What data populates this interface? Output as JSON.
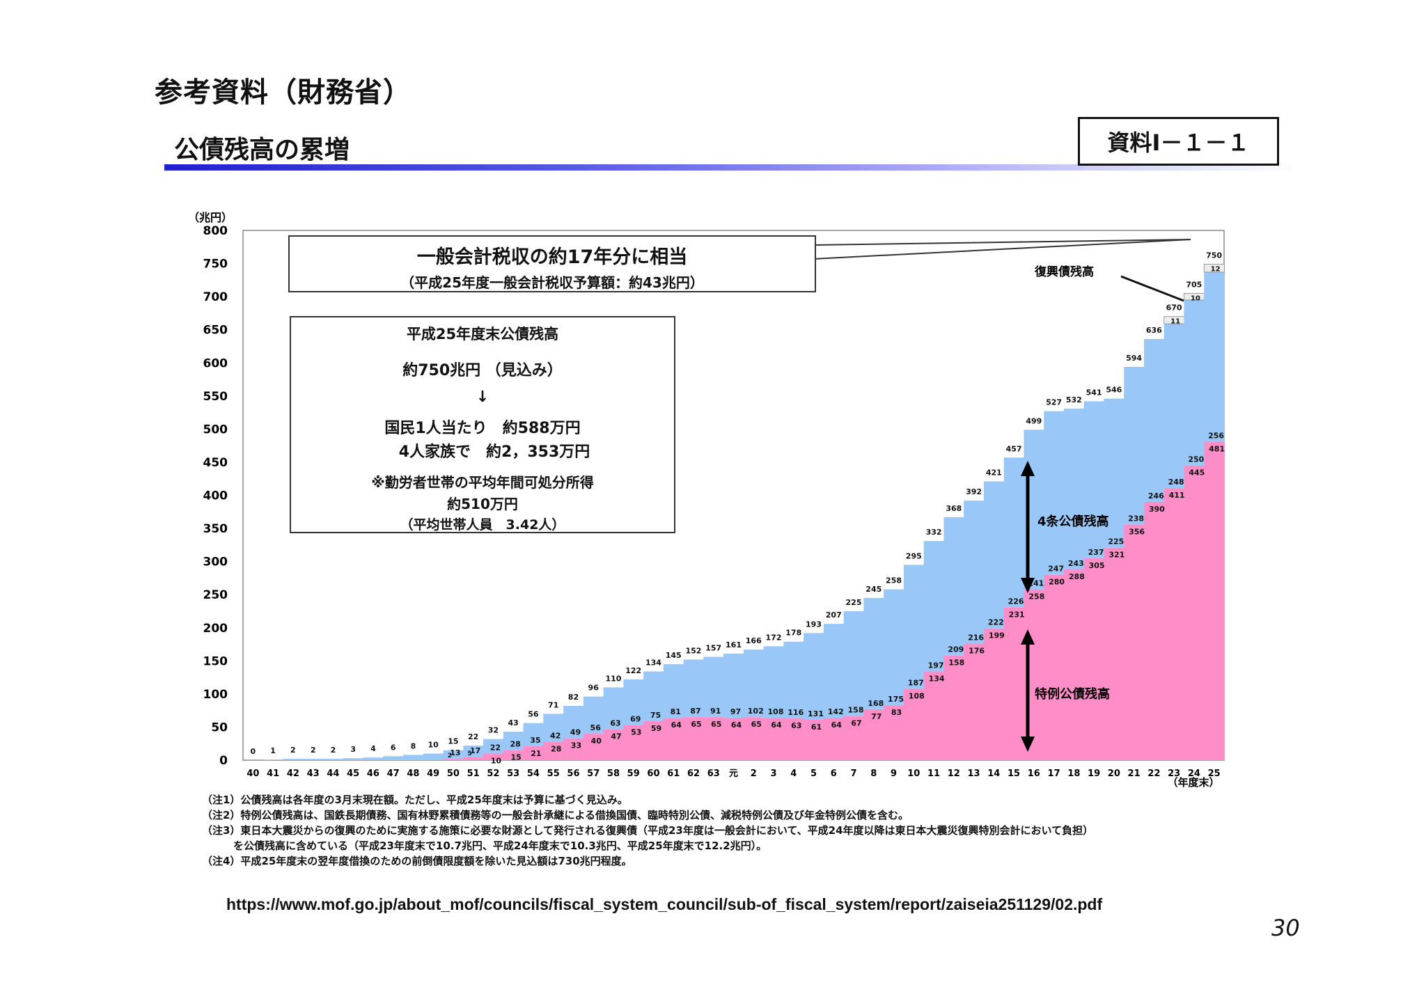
{
  "header": {
    "title": "参考資料（財務省）"
  },
  "slide": {
    "title": "公債残高の累増",
    "doc_ref": "資料Ⅰ－１－１"
  },
  "callouts": {
    "top_line1": "一般会計税収の約17年分に相当",
    "top_line2": "（平成25年度一般会計税収予算額：約43兆円）",
    "mid_line1": "平成25年度末公債残高",
    "mid_line2": "約750兆円 （見込み）",
    "mid_arrow": "↓",
    "mid_line3": "国民1人当たり　約588万円",
    "mid_line4": "4人家族で　約2，353万円",
    "mid_line5": "※勤労者世帯の平均年間可処分所得",
    "mid_line6": "約510万円",
    "mid_line7": "（平均世帯人員　3.42人）"
  },
  "chart_labels": {
    "fukko_label": "復興債残高",
    "kenchiku_label": "4条公債残高",
    "tokurei_label": "特例公債残高"
  },
  "notes": [
    "（注1）公債残高は各年度の3月末現在額。ただし、平成25年度末は予算に基づく見込み。",
    "（注2）特例公債残高は、国鉄長期債務、国有林野累積債務等の一般会計承継による借換国債、臨時特別公債、減税特例公債及び年金特例公債を含む。",
    "（注3）東日本大震災からの復興のために実施する施策に必要な財源として発行される復興債（平成23年度は一般会計において、平成24年度以降は東日本大震災復興特別会計において負担）",
    "　　　を公債残高に含めている（平成23年度末で10.7兆円、平成24年度末で10.3兆円、平成25年度末で12.2兆円）。",
    "（注4）平成25年度末の翌年度借換のための前倒債限度額を除いた見込額は730兆円程度。"
  ],
  "source_url": "https://www.mof.go.jp/about_mof/councils/fiscal_system_council/sub-of_fiscal_system/report/zaiseia251129/02.pdf",
  "page_number": "30",
  "colors": {
    "tokurei": "#ff8ec8",
    "kensetsu": "#99c8f8",
    "fukko": "#ececec",
    "axis": "#333333"
  },
  "chart_data": {
    "type": "area",
    "title": "公債残高の累増",
    "ylabel": "（兆円）",
    "xlabel": "（年度末）",
    "ylim": [
      0,
      800
    ],
    "yticks": [
      0,
      50,
      100,
      150,
      200,
      250,
      300,
      350,
      400,
      450,
      500,
      550,
      600,
      650,
      700,
      750,
      800
    ],
    "categories": [
      "40",
      "41",
      "42",
      "43",
      "44",
      "45",
      "46",
      "47",
      "48",
      "49",
      "50",
      "51",
      "52",
      "53",
      "54",
      "55",
      "56",
      "57",
      "58",
      "59",
      "60",
      "61",
      "62",
      "63",
      "元",
      "2",
      "3",
      "4",
      "5",
      "6",
      "7",
      "8",
      "9",
      "10",
      "11",
      "12",
      "13",
      "14",
      "15",
      "16",
      "17",
      "18",
      "19",
      "20",
      "21",
      "22",
      "23",
      "24",
      "25"
    ],
    "total_labels": [
      "0",
      "1",
      "2",
      "2",
      "2",
      "3",
      "4",
      "6",
      "8",
      "10",
      "15",
      "22",
      "32",
      "43",
      "56",
      "71",
      "82",
      "96",
      "110",
      "122",
      "134",
      "145",
      "152",
      "157",
      "161",
      "166",
      "172",
      "178",
      "193",
      "207",
      "225",
      "245",
      "258",
      "295",
      "332",
      "368",
      "392",
      "421",
      "457",
      "499",
      "527",
      "532",
      "541",
      "546",
      "594",
      "636",
      "670",
      "705",
      "750"
    ],
    "series": [
      {
        "name": "特例公債残高",
        "values": [
          0,
          0,
          0,
          0,
          0,
          0,
          0,
          0,
          0,
          0,
          2,
          5,
          10,
          15,
          21,
          28,
          33,
          40,
          47,
          53,
          59,
          64,
          65,
          65,
          64,
          65,
          64,
          63,
          61,
          64,
          67,
          77,
          83,
          108,
          134,
          158,
          176,
          199,
          231,
          258,
          280,
          288,
          305,
          321,
          356,
          390,
          411,
          445,
          481
        ]
      },
      {
        "name": "4条公債残高",
        "values": [
          0,
          1,
          2,
          2,
          2,
          3,
          4,
          6,
          8,
          10,
          13,
          17,
          22,
          28,
          35,
          42,
          49,
          56,
          63,
          69,
          75,
          81,
          87,
          91,
          97,
          102,
          108,
          116,
          131,
          142,
          158,
          168,
          175,
          187,
          197,
          209,
          216,
          222,
          226,
          241,
          247,
          243,
          237,
          225,
          238,
          246,
          248,
          250,
          256
        ]
      },
      {
        "name": "復興債残高",
        "values": [
          0,
          0,
          0,
          0,
          0,
          0,
          0,
          0,
          0,
          0,
          0,
          0,
          0,
          0,
          0,
          0,
          0,
          0,
          0,
          0,
          0,
          0,
          0,
          0,
          0,
          0,
          0,
          0,
          0,
          0,
          0,
          0,
          0,
          0,
          0,
          0,
          0,
          0,
          0,
          0,
          0,
          0,
          0,
          0,
          0,
          0,
          11,
          10,
          12
        ]
      }
    ]
  }
}
